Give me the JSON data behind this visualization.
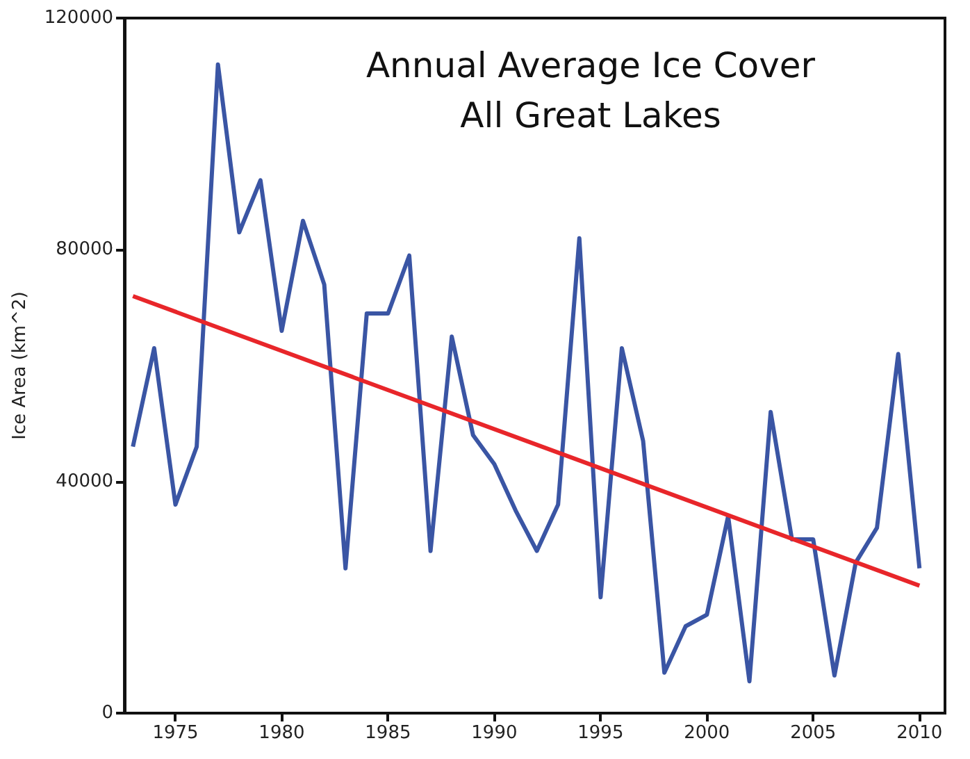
{
  "chart_data": {
    "type": "line",
    "title": "Annual Average Ice Cover\nAll Great Lakes",
    "ylabel": "Ice Area (km^2)",
    "x": [
      1973,
      1974,
      1975,
      1976,
      1977,
      1978,
      1979,
      1980,
      1981,
      1982,
      1983,
      1984,
      1985,
      1986,
      1987,
      1988,
      1989,
      1990,
      1991,
      1992,
      1993,
      1994,
      1995,
      1996,
      1997,
      1998,
      1999,
      2000,
      2001,
      2002,
      2003,
      2004,
      2005,
      2006,
      2007,
      2008,
      2009,
      2010
    ],
    "series": [
      {
        "color": "#3a55a4",
        "values": [
          46000,
          63000,
          36000,
          46000,
          112000,
          83000,
          92000,
          66000,
          85000,
          74000,
          25000,
          69000,
          69000,
          79000,
          28000,
          65000,
          48000,
          43000,
          35000,
          28000,
          36000,
          82000,
          20000,
          63000,
          47000,
          7000,
          15000,
          17000,
          34000,
          5500,
          52000,
          30000,
          30000,
          6500,
          26000,
          32000,
          62000,
          25000
        ]
      },
      {
        "color": "#e8262a",
        "x": [
          1973,
          2010
        ],
        "values": [
          72000,
          22000
        ]
      }
    ],
    "xlim": [
      1972.6,
      2011.2
    ],
    "xticks": [
      1975,
      1980,
      1985,
      1990,
      1995,
      2000,
      2005,
      2010
    ],
    "ylim": [
      0,
      120000
    ],
    "yticks": [
      0,
      40000,
      80000,
      120000
    ],
    "grid": false,
    "marker": "none",
    "line_style": "solid"
  }
}
